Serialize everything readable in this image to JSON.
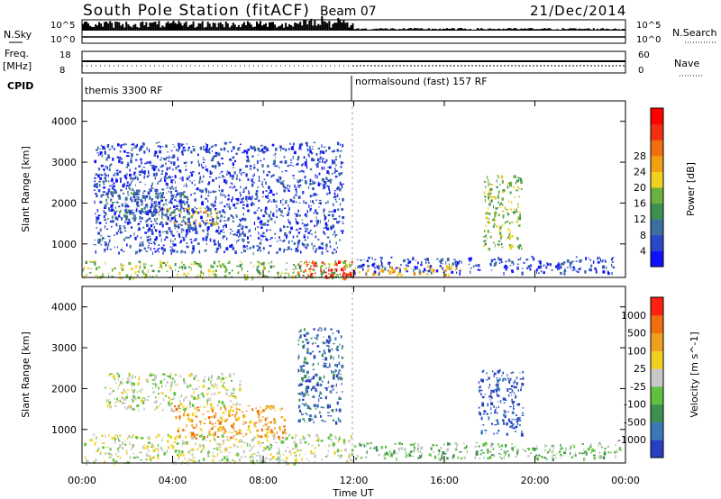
{
  "header": {
    "station": "South Pole Station (fitACF)",
    "beam": "Beam 07",
    "date": "21/Dec/2014"
  },
  "top_panel": {
    "nsky_label": "N.Sky",
    "nsky_ticks": [
      "10^5",
      "10^0"
    ],
    "nsearch_label": "N.Search",
    "nsearch_ticks": [
      "10^5",
      "10^0"
    ],
    "freq_label_1": "Freq.",
    "freq_label_2": "[MHz]",
    "freq_ticks": [
      "18",
      "8"
    ],
    "nave_label": "Nave",
    "nave_ticks": [
      "60",
      "0"
    ],
    "cpid_label": "CPID",
    "cpid_segments": [
      {
        "label": "themis 3300 RF",
        "start_hour": 0,
        "end_hour": 12
      },
      {
        "label": "normalsound (fast) 157 RF",
        "start_hour": 12,
        "end_hour": 24
      }
    ]
  },
  "time_axis": {
    "label": "Time UT",
    "ticks": [
      "00:00",
      "04:00",
      "08:00",
      "12:00",
      "16:00",
      "20:00",
      "00:00"
    ]
  },
  "range_axis": {
    "label": "Slant Range [km]",
    "ticks": [
      "1000",
      "2000",
      "3000",
      "4000"
    ]
  },
  "chart_data": [
    {
      "type": "heatmap",
      "name": "power",
      "xlabel": "Time UT",
      "ylabel": "Slant Range [km]",
      "xlim": [
        0,
        24
      ],
      "ylim": [
        180,
        4500
      ],
      "colorbar": {
        "label": "Power [dB]",
        "ticks": [
          "4",
          "8",
          "12",
          "16",
          "20",
          "24",
          "28"
        ],
        "colors": [
          "#1010ff",
          "#2848c8",
          "#3c6ea0",
          "#3c9050",
          "#6cb040",
          "#f0d020",
          "#f0a010",
          "#f07010",
          "#f03010",
          "#ff0000"
        ]
      },
      "regions": [
        {
          "t0": 0.0,
          "t1": 11.9,
          "r0": 180,
          "r1": 600,
          "level": 4
        },
        {
          "t0": 1.0,
          "t1": 4.5,
          "r0": 1600,
          "r1": 2400,
          "level": 2
        },
        {
          "t0": 3.3,
          "t1": 6.0,
          "r0": 1500,
          "r1": 1900,
          "level": 5
        },
        {
          "t0": 0.5,
          "t1": 11.5,
          "r0": 800,
          "r1": 3500,
          "level": 1
        },
        {
          "t0": 9.5,
          "t1": 12.0,
          "r0": 180,
          "r1": 600,
          "level": 8
        },
        {
          "t0": 10.8,
          "t1": 12.0,
          "r0": 200,
          "r1": 400,
          "level": 9
        },
        {
          "t0": 12.0,
          "t1": 16.8,
          "r0": 250,
          "r1": 500,
          "level": 6
        },
        {
          "t0": 17.7,
          "t1": 19.4,
          "r0": 900,
          "r1": 2700,
          "level": 4
        },
        {
          "t0": 12.0,
          "t1": 23.5,
          "r0": 300,
          "r1": 700,
          "level": 1
        }
      ]
    },
    {
      "type": "heatmap",
      "name": "velocity",
      "xlabel": "Time UT",
      "ylabel": "Slant Range [km]",
      "xlim": [
        0,
        24
      ],
      "ylim": [
        180,
        4500
      ],
      "colorbar": {
        "label": "Velocity [m s^-1]",
        "ticks": [
          "1000",
          "500",
          "100",
          "25",
          "-25",
          "-100",
          "-500",
          "-1000"
        ],
        "colors": [
          "#2840c0",
          "#3a78b8",
          "#3c9050",
          "#60c040",
          "#c8c8c8",
          "#f0d020",
          "#f0a020",
          "#f07010",
          "#ff2010"
        ]
      },
      "regions": [
        {
          "t0": 0.0,
          "t1": 11.9,
          "r0": 180,
          "r1": 900,
          "level": 4
        },
        {
          "t0": 1.0,
          "t1": 7.0,
          "r0": 1500,
          "r1": 2400,
          "level": 4
        },
        {
          "t0": 4.0,
          "t1": 9.0,
          "r0": 800,
          "r1": 1600,
          "level": 6
        },
        {
          "t0": 9.5,
          "t1": 11.5,
          "r0": 1200,
          "r1": 3500,
          "level": 1
        },
        {
          "t0": 12.0,
          "t1": 23.8,
          "r0": 300,
          "r1": 700,
          "level": 3
        },
        {
          "t0": 17.5,
          "t1": 19.5,
          "r0": 900,
          "r1": 2500,
          "level": 0
        }
      ]
    }
  ]
}
